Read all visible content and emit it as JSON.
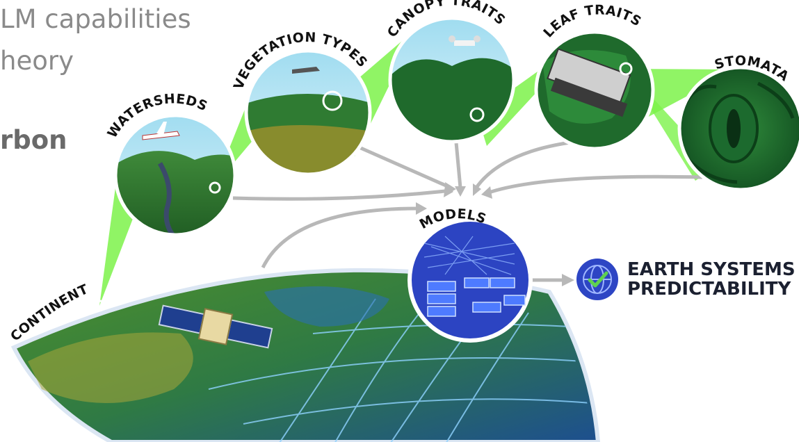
{
  "background_text": {
    "line1": "LM capabilities",
    "line2": "heory",
    "line3": "rbon"
  },
  "scales": {
    "continent": "CONTINENT",
    "watersheds": "WATERSHEDS",
    "vegetation_types": "VEGETATION TYPES",
    "canopy_traits": "CANOPY TRAITS",
    "leaf_traits": "LEAF TRAITS",
    "stomata": "STOMATA",
    "models": "MODELS"
  },
  "outcome": {
    "line1": "EARTH SYSTEMS",
    "line2": "PREDICTABILITY",
    "icon": "globe-check-icon"
  },
  "colors": {
    "highlight_green": "#7cf24a",
    "model_blue": "#2c44c2",
    "arrow_gray": "#b8b8b8",
    "outcome_icon_blue": "#2d45c4",
    "check_green": "#5fd14f"
  }
}
